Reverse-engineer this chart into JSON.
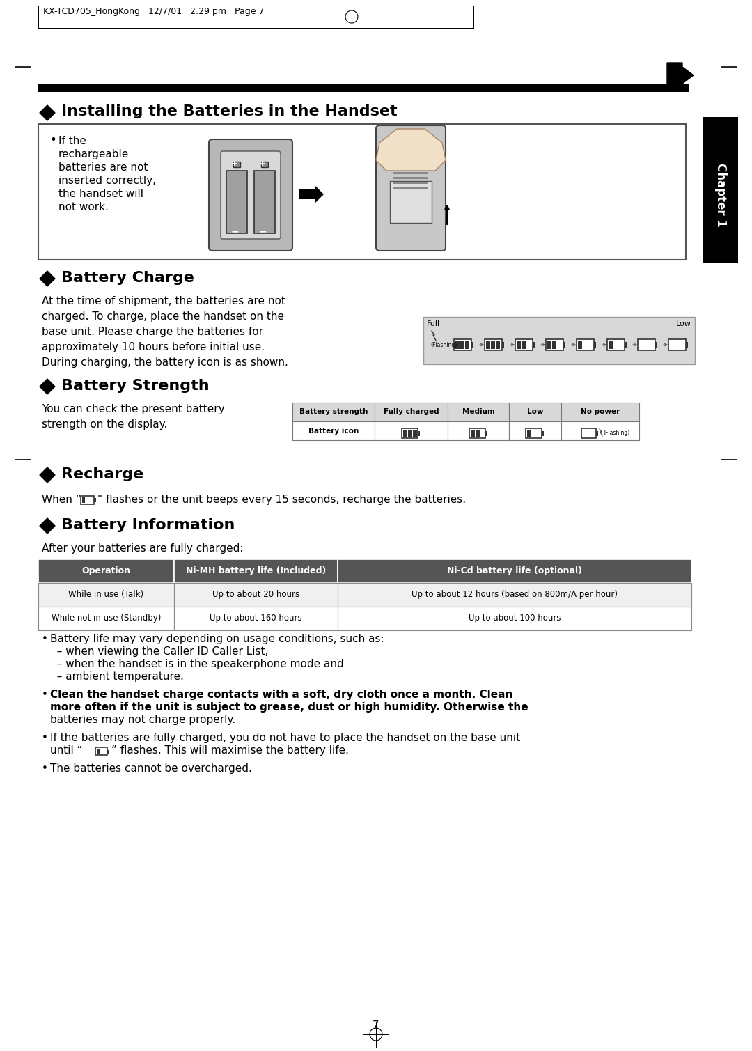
{
  "title_header": "KX-TCD705_HongKong   12/7/01   2:29 pm   Page 7",
  "section1_title": "Installing the Batteries in the Handset",
  "section1_bullet_lines": [
    "If the",
    "rechargeable",
    "batteries are not",
    "inserted correctly,",
    "the handset will",
    "not work."
  ],
  "section2_title": "Battery Charge",
  "section2_body_lines": [
    "At the time of shipment, the batteries are not",
    "charged. To charge, place the handset on the",
    "base unit. Please charge the batteries for",
    "approximately 10 hours before initial use.",
    "During charging, the battery icon is as shown."
  ],
  "charge_full": "Full",
  "charge_low": "Low",
  "section3_title": "Battery Strength",
  "section3_body_lines": [
    "You can check the present battery",
    "strength on the display."
  ],
  "batt_table_headers": [
    "Battery strength",
    "Fully charged",
    "Medium",
    "Low",
    "No power"
  ],
  "batt_table_row2_label": "Battery icon",
  "section4_title": "Recharge",
  "section4_body": "\" flashes or the unit beeps every 15 seconds, recharge the batteries.",
  "section5_title": "Battery Information",
  "section5_subtitle": "After your batteries are fully charged:",
  "info_table_headers": [
    "Operation",
    "Ni-MH battery life (Included)",
    "Ni-Cd battery life (optional)"
  ],
  "info_table_rows": [
    [
      "While in use (Talk)",
      "Up to about 20 hours",
      "Up to about 12 hours (based on 800m/A per hour)"
    ],
    [
      "While not in use (Standby)",
      "Up to about 160 hours",
      "Up to about 100 hours"
    ]
  ],
  "bullet1_lines": [
    "Battery life may vary depending on usage conditions, such as:",
    "  – when viewing the Caller ID Caller List,",
    "  – when the handset is in the speakerphone mode and",
    "  – ambient temperature."
  ],
  "bullet2_lines": [
    "Clean the handset charge contacts with a soft, dry cloth once a month. Clean",
    "more often if the unit is subject to grease, dust or high humidity. Otherwise the",
    "batteries may not charge properly."
  ],
  "bullet3_line1": "If the batteries are fully charged, you do not have to place the handset on the base unit",
  "bullet3_line2": "” flashes. This will maximise the battery life.",
  "bullet4": "The batteries cannot be overcharged.",
  "page_num": "7",
  "chapter_text": "Chapter 1",
  "bg": "#ffffff",
  "black": "#000000",
  "gray_light": "#d8d8d8",
  "gray_mid": "#888888",
  "gray_dark": "#555555",
  "table_hdr_bg": "#666666",
  "charge_bg": "#d8d8d8"
}
